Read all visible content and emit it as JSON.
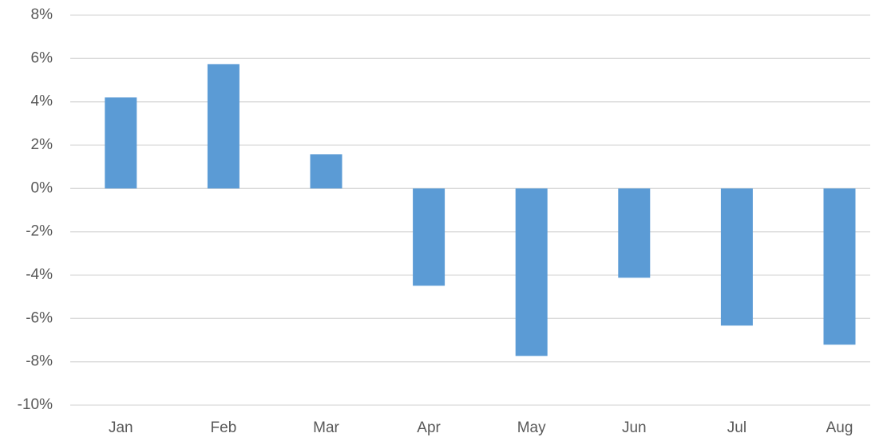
{
  "chart_data": {
    "type": "bar",
    "categories": [
      "Jan",
      "Feb",
      "Mar",
      "Apr",
      "May",
      "Jun",
      "Jul",
      "Aug"
    ],
    "values": [
      4.2,
      5.74,
      1.58,
      -4.49,
      -7.73,
      -4.12,
      -6.33,
      -7.21
    ],
    "color": "#5b9bd5",
    "ylim": [
      -10,
      8
    ],
    "yticks": [
      {
        "value": -10,
        "label": "-10%"
      },
      {
        "value": -8,
        "label": "-8%"
      },
      {
        "value": -6,
        "label": "-6%"
      },
      {
        "value": -4,
        "label": "-4%"
      },
      {
        "value": -2,
        "label": "-2%"
      },
      {
        "value": 0,
        "label": "0%"
      },
      {
        "value": 2,
        "label": "2%"
      },
      {
        "value": 4,
        "label": "4%"
      },
      {
        "value": 6,
        "label": "6%"
      },
      {
        "value": 8,
        "label": "8%"
      }
    ],
    "grid": true
  }
}
